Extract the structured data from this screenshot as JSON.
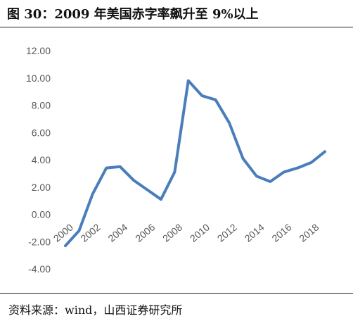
{
  "title": "图 30：2009 年美国赤字率飙升至 9%以上",
  "source": "资料来源：wind，山西证券研究所",
  "chart_data": {
    "type": "line",
    "title": "",
    "xlabel": "",
    "ylabel": "",
    "x": [
      2000,
      2001,
      2002,
      2003,
      2004,
      2005,
      2006,
      2007,
      2008,
      2009,
      2010,
      2011,
      2012,
      2013,
      2014,
      2015,
      2016,
      2017,
      2018,
      2019
    ],
    "series": [
      {
        "values": [
          -2.3,
          -1.2,
          1.5,
          3.4,
          3.5,
          2.5,
          1.8,
          1.1,
          3.1,
          9.8,
          8.7,
          8.4,
          6.7,
          4.1,
          2.8,
          2.4,
          3.1,
          3.4,
          3.8,
          4.6
        ],
        "color": "#4a7ebb"
      }
    ],
    "ylim": [
      -4,
      12
    ],
    "yticks": [
      "12.00",
      "10.00",
      "8.00",
      "6.00",
      "4.00",
      "2.00",
      "0.00",
      "-2.00",
      "-4.00"
    ],
    "xticks": [
      "2000",
      "2002",
      "2004",
      "2006",
      "2008",
      "2010",
      "2012",
      "2014",
      "2016",
      "2018"
    ],
    "grid": false,
    "legend": "none"
  }
}
